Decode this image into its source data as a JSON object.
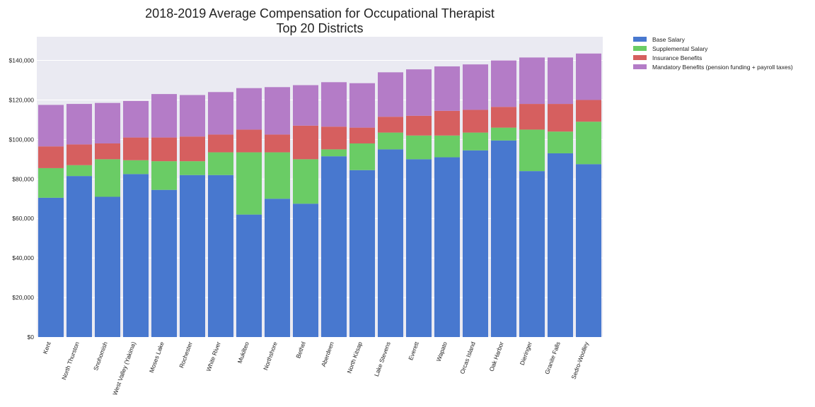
{
  "chart_data": {
    "type": "bar",
    "stacked": true,
    "title": "2018-2019 Average Compensation for Occupational Therapist",
    "subtitle": "Top 20 Districts",
    "xlabel": "",
    "ylabel": "",
    "ylim": [
      0,
      152000
    ],
    "yticks": [
      0,
      20000,
      40000,
      60000,
      80000,
      100000,
      120000,
      140000
    ],
    "ytick_labels": [
      "$0",
      "$20,000",
      "$40,000",
      "$60,000",
      "$80,000",
      "$100,000",
      "$120,000",
      "$140,000"
    ],
    "grid": true,
    "legend_position": "outside-top-right",
    "categories": [
      "Kent",
      "North Thurston",
      "Snohomish",
      "West Valley (Yakima)",
      "Moses Lake",
      "Rochester",
      "White River",
      "Mukilteo",
      "Northshore",
      "Bethel",
      "Aberdeen",
      "North Kitsap",
      "Lake Stevens",
      "Everett",
      "Wapato",
      "Orcas Island",
      "Oak Harbor",
      "Dieringer",
      "Granite Falls",
      "Sedro-Woolley"
    ],
    "series": [
      {
        "name": "Base Salary",
        "color": "#4878cf",
        "values": [
          70500,
          81500,
          71000,
          82500,
          74500,
          82000,
          82000,
          62000,
          70000,
          67500,
          91500,
          84500,
          95000,
          90000,
          91000,
          94500,
          99500,
          84000,
          93000,
          87500
        ]
      },
      {
        "name": "Supplemental Salary",
        "color": "#6acc65",
        "values": [
          15000,
          5500,
          19000,
          7000,
          14500,
          7000,
          11500,
          31500,
          23500,
          22500,
          3500,
          13500,
          8500,
          12000,
          11000,
          9000,
          6500,
          21000,
          11000,
          21500
        ]
      },
      {
        "name": "Insurance Benefits",
        "color": "#d65f5f",
        "values": [
          11000,
          10500,
          8000,
          11500,
          12000,
          12500,
          9000,
          11500,
          9000,
          17000,
          11500,
          8000,
          8000,
          10000,
          12500,
          11500,
          10500,
          13000,
          14000,
          11000
        ]
      },
      {
        "name": "Mandatory Benefits (pension funding + payroll taxes)",
        "color": "#b47cc7",
        "values": [
          21000,
          20500,
          20500,
          18500,
          22000,
          21000,
          21500,
          21000,
          24000,
          20500,
          22500,
          22500,
          22500,
          23500,
          22500,
          23000,
          23500,
          23500,
          23500,
          23500
        ]
      }
    ]
  }
}
